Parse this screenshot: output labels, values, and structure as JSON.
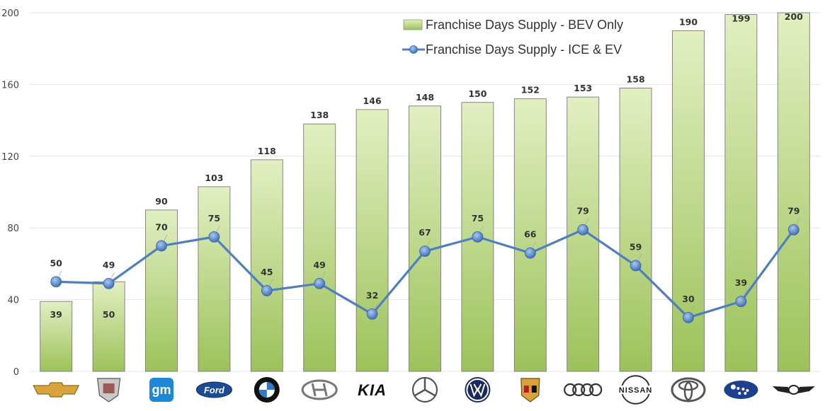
{
  "chart_data": {
    "type": "bar",
    "categories": [
      "Chevrolet",
      "Cadillac",
      "GM",
      "Ford",
      "BMW",
      "Hyundai",
      "Kia",
      "Mercedes-Benz",
      "Volkswagen",
      "Porsche",
      "Audi",
      "Nissan",
      "Toyota",
      "Subaru",
      "Genesis"
    ],
    "series": [
      {
        "name": "Franchise Days Supply - BEV Only",
        "kind": "bar",
        "values": [
          39,
          50,
          90,
          103,
          118,
          138,
          146,
          148,
          150,
          152,
          153,
          158,
          190,
          199,
          200
        ]
      },
      {
        "name": "Franchise Days Supply - ICE & EV",
        "kind": "line",
        "values": [
          50,
          49,
          70,
          75,
          45,
          49,
          32,
          67,
          75,
          66,
          79,
          59,
          30,
          39,
          79
        ]
      }
    ],
    "ylim": [
      0,
      200
    ],
    "yticks": [
      0,
      40,
      80,
      120,
      160,
      200
    ],
    "grid": true,
    "legend": "top-right",
    "xlabel": "",
    "ylabel": "",
    "title": "",
    "colors": {
      "bar_top": "#dfedbb",
      "bar_bottom": "#9dc25c",
      "bar_stroke": "#6b6b6b",
      "line": "#4f7fbf",
      "marker": "#4a7dc4",
      "grid": "#e4e4e4"
    }
  },
  "logos": [
    {
      "name": "chevrolet-logo-icon"
    },
    {
      "name": "cadillac-logo-icon"
    },
    {
      "name": "gm-logo-icon",
      "text": "gm"
    },
    {
      "name": "ford-logo-icon",
      "text": "Ford"
    },
    {
      "name": "bmw-logo-icon"
    },
    {
      "name": "hyundai-logo-icon"
    },
    {
      "name": "kia-logo-icon",
      "text": "KIA"
    },
    {
      "name": "mercedes-logo-icon"
    },
    {
      "name": "volkswagen-logo-icon"
    },
    {
      "name": "porsche-logo-icon"
    },
    {
      "name": "audi-logo-icon"
    },
    {
      "name": "nissan-logo-icon",
      "text": "NISSAN"
    },
    {
      "name": "toyota-logo-icon"
    },
    {
      "name": "subaru-logo-icon"
    },
    {
      "name": "genesis-logo-icon"
    }
  ]
}
